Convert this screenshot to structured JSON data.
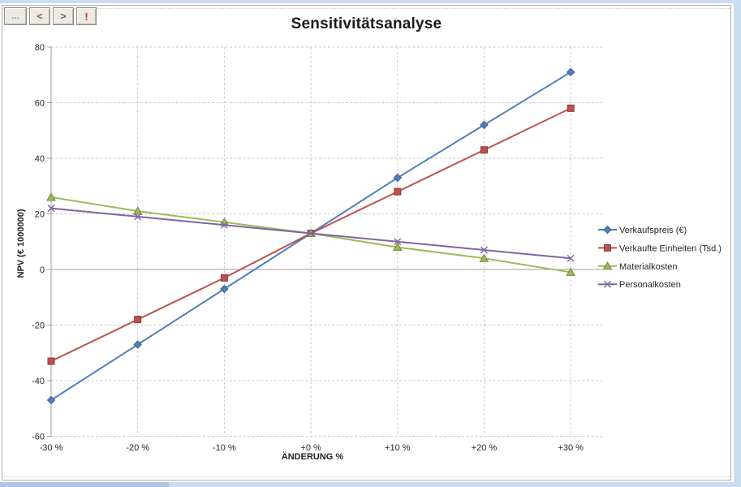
{
  "toolbar": {
    "buttons": [
      {
        "label": "...",
        "name": "more"
      },
      {
        "label": "<",
        "name": "previous"
      },
      {
        "label": ">",
        "name": "next"
      },
      {
        "label": "!",
        "name": "alert"
      }
    ]
  },
  "chart_data": {
    "type": "line",
    "title": "Sensitivitätsanalyse",
    "xlabel": "ÄNDERUNG %",
    "ylabel": "NPV (€ 1000000)",
    "categories": [
      "-30 %",
      "-20 %",
      "-10 %",
      "+0 %",
      "+10 %",
      "+20 %",
      "+30 %"
    ],
    "ylim": [
      -60,
      80
    ],
    "ytick_step": 20,
    "grid": true,
    "legend_position": "right",
    "series": [
      {
        "name": "Verkaufspreis (€)",
        "color": "#4f81bd",
        "marker": "diamond",
        "values": [
          -47,
          -27,
          -7,
          13,
          33,
          52,
          71
        ]
      },
      {
        "name": "Verkaufte Einheiten (Tsd.)",
        "color": "#c0504d",
        "marker": "square",
        "values": [
          -33,
          -18,
          -3,
          13,
          28,
          43,
          58
        ]
      },
      {
        "name": "Materialkosten",
        "color": "#9bbb59",
        "marker": "triangle",
        "values": [
          26,
          21,
          17,
          13,
          8,
          4,
          -1
        ]
      },
      {
        "name": "Personalkosten",
        "color": "#8064a2",
        "marker": "x",
        "values": [
          22,
          19,
          16,
          13,
          10,
          7,
          4
        ]
      }
    ]
  },
  "colors": {
    "worksheet_fill": "#c9dcf2",
    "worksheet_fill_alt": "#aec6e6",
    "chart_border": "#ababab",
    "gridline": "#c8c8c8",
    "axis_line": "#9c9c9c",
    "tick_text": "#262626"
  }
}
